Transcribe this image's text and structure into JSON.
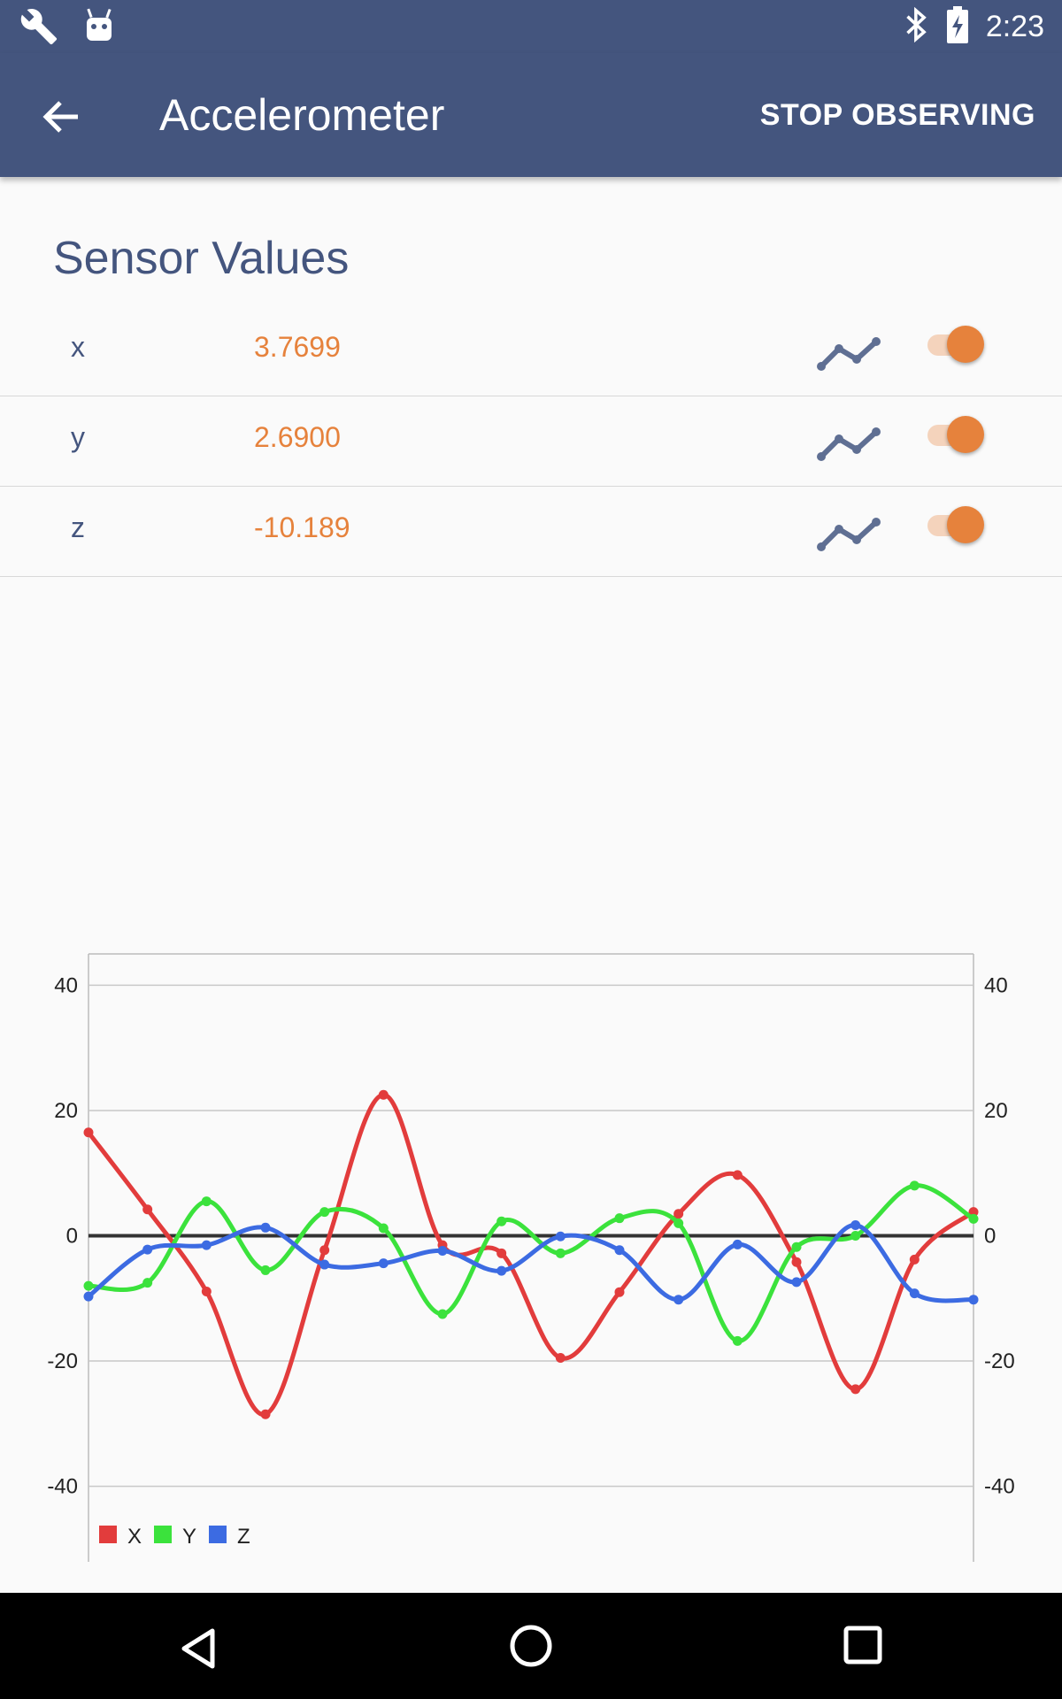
{
  "status_bar": {
    "time": "2:23",
    "left_icons": [
      "wrench-icon",
      "android-icon"
    ],
    "right_icons": [
      "bluetooth-icon",
      "battery-charging-icon"
    ]
  },
  "app_bar": {
    "title": "Accelerometer",
    "action_label": "STOP OBSERVING",
    "back_icon": "arrow-back-icon",
    "color": "#44557e"
  },
  "section_title": "Sensor Values",
  "sensor_rows": [
    {
      "axis": "x",
      "value": "3.7699",
      "graph_icon": "line-chart-icon",
      "toggle_on": true
    },
    {
      "axis": "y",
      "value": "2.6900",
      "graph_icon": "line-chart-icon",
      "toggle_on": true
    },
    {
      "axis": "z",
      "value": "-10.189",
      "graph_icon": "line-chart-icon",
      "toggle_on": true
    }
  ],
  "chart_data": {
    "type": "line",
    "ylim": [
      -45,
      45
    ],
    "y_ticks": [
      40,
      20,
      0,
      -20,
      -40
    ],
    "y_tick_labels_left": [
      "40",
      "20",
      "0",
      "-20",
      "-40"
    ],
    "y_tick_labels_right": [
      "40",
      "20",
      "0",
      "-20",
      "-40"
    ],
    "grid": true,
    "legend_position": "bottom-left",
    "series": [
      {
        "name": "X",
        "color": "#e23c3c",
        "values": [
          16.5,
          4.2,
          -8.9,
          -28.5,
          -2.3,
          22.5,
          -1.5,
          -2.8,
          -19.5,
          -9.0,
          3.5,
          9.7,
          -4.2,
          -24.5,
          -3.8,
          3.8
        ]
      },
      {
        "name": "Y",
        "color": "#3be23c",
        "values": [
          -8.0,
          -7.5,
          5.5,
          -5.5,
          3.8,
          1.2,
          -12.5,
          2.3,
          -2.8,
          2.8,
          2.0,
          -16.8,
          -1.8,
          0.0,
          8.0,
          2.7
        ]
      },
      {
        "name": "Z",
        "color": "#3c6be2",
        "values": [
          -9.7,
          -2.2,
          -1.5,
          1.3,
          -4.6,
          -4.4,
          -2.4,
          -5.6,
          -0.1,
          -2.3,
          -10.2,
          -1.4,
          -7.4,
          1.7,
          -9.2,
          -10.2
        ]
      }
    ]
  },
  "nav_bar": {
    "icons": [
      "back-triangle-icon",
      "home-circle-icon",
      "recents-square-icon"
    ]
  }
}
